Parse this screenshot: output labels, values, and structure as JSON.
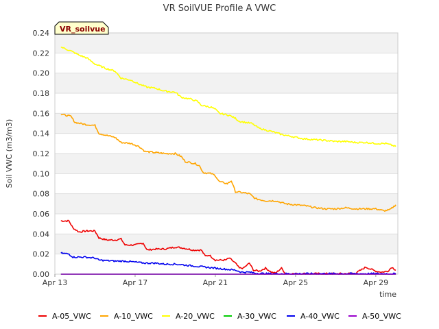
{
  "chart_data": {
    "type": "line",
    "title": "VR SoilVUE Profile A VWC",
    "xlabel": "time",
    "ylabel": "Soil VWC (m3/m3)",
    "badge": "VR_soilvue",
    "x_range": [
      13.0,
      30.1
    ],
    "ylim": [
      0,
      0.24
    ],
    "x_ticks": [
      {
        "value": 13,
        "label": "Apr 13"
      },
      {
        "value": 17,
        "label": "Apr 17"
      },
      {
        "value": 21,
        "label": "Apr 21"
      },
      {
        "value": 25,
        "label": "Apr 25"
      },
      {
        "value": 29,
        "label": "Apr 29"
      }
    ],
    "y_ticks": [
      {
        "value": 0.0,
        "label": "0.00"
      },
      {
        "value": 0.02,
        "label": "0.02"
      },
      {
        "value": 0.04,
        "label": "0.04"
      },
      {
        "value": 0.06,
        "label": "0.06"
      },
      {
        "value": 0.08,
        "label": "0.08"
      },
      {
        "value": 0.1,
        "label": "0.10"
      },
      {
        "value": 0.12,
        "label": "0.12"
      },
      {
        "value": 0.14,
        "label": "0.14"
      },
      {
        "value": 0.16,
        "label": "0.16"
      },
      {
        "value": 0.18,
        "label": "0.18"
      },
      {
        "value": 0.2,
        "label": "0.20"
      },
      {
        "value": 0.22,
        "label": "0.22"
      },
      {
        "value": 0.24,
        "label": "0.24"
      }
    ],
    "grid": "horizontal alternating bands",
    "legend_position": "bottom",
    "series": [
      {
        "name": "A-05_VWC",
        "color": "#ee0000",
        "points": [
          [
            13.3,
            0.053
          ],
          [
            13.7,
            0.053
          ],
          [
            13.9,
            0.046
          ],
          [
            14.2,
            0.042
          ],
          [
            14.6,
            0.043
          ],
          [
            15.0,
            0.043
          ],
          [
            15.2,
            0.036
          ],
          [
            15.6,
            0.034
          ],
          [
            16.0,
            0.034
          ],
          [
            16.3,
            0.035
          ],
          [
            16.5,
            0.029
          ],
          [
            17.0,
            0.029
          ],
          [
            17.4,
            0.031
          ],
          [
            17.6,
            0.024
          ],
          [
            18.0,
            0.025
          ],
          [
            18.5,
            0.025
          ],
          [
            19.0,
            0.027
          ],
          [
            19.4,
            0.026
          ],
          [
            19.9,
            0.024
          ],
          [
            20.3,
            0.024
          ],
          [
            20.5,
            0.018
          ],
          [
            20.7,
            0.019
          ],
          [
            21.0,
            0.014
          ],
          [
            21.5,
            0.014
          ],
          [
            21.7,
            0.016
          ],
          [
            22.0,
            0.011
          ],
          [
            22.2,
            0.006
          ],
          [
            22.4,
            0.006
          ],
          [
            22.7,
            0.011
          ],
          [
            22.9,
            0.004
          ],
          [
            23.2,
            0.003
          ],
          [
            23.5,
            0.006
          ],
          [
            23.8,
            0.002
          ],
          [
            24.0,
            0.001
          ],
          [
            24.3,
            0.006
          ],
          [
            24.5,
            0.0005
          ],
          [
            25.5,
            0.0005
          ],
          [
            26.5,
            0.0005
          ],
          [
            27.5,
            0.0005
          ],
          [
            28.0,
            0.001
          ],
          [
            28.5,
            0.007
          ],
          [
            29.0,
            0.003
          ],
          [
            29.3,
            0.002
          ],
          [
            29.6,
            0.003
          ],
          [
            29.8,
            0.007
          ],
          [
            30.0,
            0.004
          ]
        ]
      },
      {
        "name": "A-10_VWC",
        "color": "#ffa500",
        "points": [
          [
            13.3,
            0.159
          ],
          [
            13.8,
            0.157
          ],
          [
            14.0,
            0.151
          ],
          [
            14.5,
            0.149
          ],
          [
            15.0,
            0.148
          ],
          [
            15.2,
            0.14
          ],
          [
            15.6,
            0.138
          ],
          [
            16.0,
            0.136
          ],
          [
            16.3,
            0.131
          ],
          [
            16.8,
            0.13
          ],
          [
            17.2,
            0.127
          ],
          [
            17.5,
            0.122
          ],
          [
            18.0,
            0.121
          ],
          [
            18.5,
            0.12
          ],
          [
            19.0,
            0.12
          ],
          [
            19.3,
            0.117
          ],
          [
            19.5,
            0.112
          ],
          [
            20.0,
            0.11
          ],
          [
            20.2,
            0.108
          ],
          [
            20.4,
            0.101
          ],
          [
            20.8,
            0.1
          ],
          [
            21.0,
            0.098
          ],
          [
            21.2,
            0.092
          ],
          [
            21.6,
            0.09
          ],
          [
            21.8,
            0.093
          ],
          [
            22.0,
            0.082
          ],
          [
            22.4,
            0.081
          ],
          [
            22.7,
            0.08
          ],
          [
            23.0,
            0.075
          ],
          [
            23.5,
            0.073
          ],
          [
            24.0,
            0.073
          ],
          [
            24.5,
            0.07
          ],
          [
            25.0,
            0.069
          ],
          [
            25.5,
            0.068
          ],
          [
            26.0,
            0.066
          ],
          [
            26.5,
            0.065
          ],
          [
            27.0,
            0.065
          ],
          [
            27.5,
            0.066
          ],
          [
            28.0,
            0.065
          ],
          [
            28.5,
            0.065
          ],
          [
            29.0,
            0.065
          ],
          [
            29.4,
            0.063
          ],
          [
            29.7,
            0.064
          ],
          [
            30.0,
            0.069
          ]
        ]
      },
      {
        "name": "A-20_VWC",
        "color": "#ffff00",
        "points": [
          [
            13.3,
            0.226
          ],
          [
            13.8,
            0.222
          ],
          [
            14.2,
            0.218
          ],
          [
            14.6,
            0.215
          ],
          [
            15.0,
            0.209
          ],
          [
            15.5,
            0.205
          ],
          [
            16.0,
            0.202
          ],
          [
            16.3,
            0.195
          ],
          [
            16.8,
            0.193
          ],
          [
            17.2,
            0.189
          ],
          [
            17.6,
            0.186
          ],
          [
            18.0,
            0.185
          ],
          [
            18.5,
            0.182
          ],
          [
            19.0,
            0.181
          ],
          [
            19.3,
            0.176
          ],
          [
            19.8,
            0.174
          ],
          [
            20.1,
            0.172
          ],
          [
            20.3,
            0.168
          ],
          [
            20.8,
            0.166
          ],
          [
            21.0,
            0.164
          ],
          [
            21.2,
            0.16
          ],
          [
            21.7,
            0.158
          ],
          [
            22.0,
            0.155
          ],
          [
            22.2,
            0.152
          ],
          [
            22.8,
            0.15
          ],
          [
            23.2,
            0.145
          ],
          [
            23.8,
            0.142
          ],
          [
            24.3,
            0.139
          ],
          [
            24.8,
            0.137
          ],
          [
            25.3,
            0.135
          ],
          [
            25.8,
            0.134
          ],
          [
            26.5,
            0.133
          ],
          [
            27.0,
            0.132
          ],
          [
            27.5,
            0.132
          ],
          [
            28.0,
            0.131
          ],
          [
            28.5,
            0.131
          ],
          [
            29.0,
            0.13
          ],
          [
            29.5,
            0.13
          ],
          [
            30.0,
            0.127
          ]
        ]
      },
      {
        "name": "A-30_VWC",
        "color": "#00cc00",
        "points": [
          [
            13.3,
            0.0
          ],
          [
            30.0,
            0.0
          ]
        ]
      },
      {
        "name": "A-40_VWC",
        "color": "#0000ee",
        "points": [
          [
            13.3,
            0.021
          ],
          [
            13.7,
            0.02
          ],
          [
            13.9,
            0.017
          ],
          [
            14.5,
            0.017
          ],
          [
            15.0,
            0.016
          ],
          [
            15.2,
            0.014
          ],
          [
            16.0,
            0.013
          ],
          [
            16.5,
            0.013
          ],
          [
            17.0,
            0.012
          ],
          [
            17.5,
            0.011
          ],
          [
            18.0,
            0.011
          ],
          [
            18.5,
            0.01
          ],
          [
            19.0,
            0.01
          ],
          [
            19.5,
            0.009
          ],
          [
            20.0,
            0.008
          ],
          [
            20.5,
            0.007
          ],
          [
            21.0,
            0.006
          ],
          [
            21.5,
            0.005
          ],
          [
            22.0,
            0.004
          ],
          [
            22.3,
            0.002
          ],
          [
            22.7,
            0.002
          ],
          [
            23.0,
            0.001
          ],
          [
            23.5,
            0.0005
          ],
          [
            24.0,
            0.0005
          ],
          [
            25.0,
            0.0005
          ],
          [
            26.0,
            0.0005
          ],
          [
            27.0,
            0.0005
          ],
          [
            28.0,
            0.0005
          ],
          [
            29.0,
            0.0005
          ],
          [
            30.0,
            0.0005
          ]
        ]
      },
      {
        "name": "A-50_VWC",
        "color": "#9900cc",
        "points": [
          [
            13.3,
            0.0
          ],
          [
            30.0,
            0.0
          ]
        ]
      }
    ]
  }
}
